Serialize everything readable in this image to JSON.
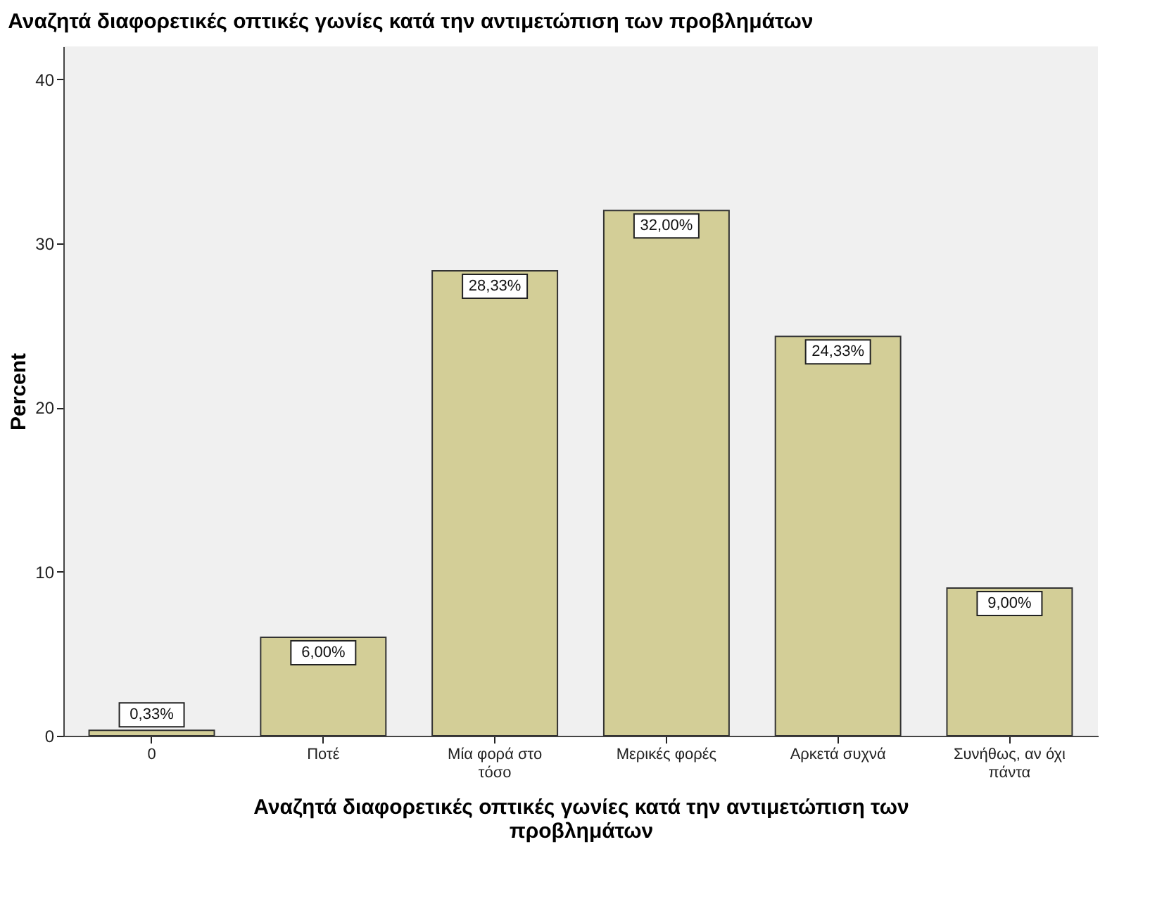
{
  "chart_data": {
    "type": "bar",
    "title": "Αναζητά διαφορετικές οπτικές γωνίες κατά την αντιμετώπιση των προβλημάτων",
    "xlabel": "Αναζητά διαφορετικές οπτικές γωνίες κατά την αντιμετώπιση των προβλημάτων",
    "ylabel": "Percent",
    "categories": [
      "0",
      "Ποτέ",
      "Μία φορά στο τόσο",
      "Μερικές φορές",
      "Αρκετά συχνά",
      "Συνήθως, αν όχι πάντα"
    ],
    "values": [
      0.33,
      6.0,
      28.33,
      32.0,
      24.33,
      9.0
    ],
    "value_labels": [
      "0,33%",
      "6,00%",
      "28,33%",
      "32,00%",
      "24,33%",
      "9,00%"
    ],
    "color": "#d3ce97",
    "ylim": [
      0,
      42
    ],
    "yticks": [
      0,
      10,
      20,
      30,
      40
    ],
    "grid": false
  }
}
